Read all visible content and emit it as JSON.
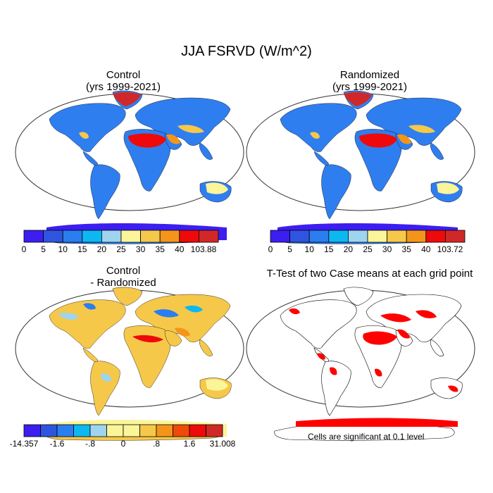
{
  "figure_title": "JJA FSRVD (W/m^2)",
  "panels": [
    {
      "title_line1": "Control",
      "title_line2": "(yrs 1999-2021)",
      "colorbar_labels": [
        "0",
        "5",
        "10",
        "15",
        "20",
        "25",
        "30",
        "35",
        "40",
        "103.88"
      ],
      "colors": [
        "#3c1ef0",
        "#2f55e0",
        "#2a7ef0",
        "#0db8f0",
        "#9ed4ee",
        "#fbf59a",
        "#f6c84a",
        "#f4951a",
        "#ee0a0a",
        "#d02828"
      ]
    },
    {
      "title_line1": "Randomized",
      "title_line2": "(yrs 1999-2021)",
      "colorbar_labels": [
        "0",
        "5",
        "10",
        "15",
        "20",
        "25",
        "30",
        "35",
        "40",
        "103.72"
      ],
      "colors": [
        "#3c1ef0",
        "#2f55e0",
        "#2a7ef0",
        "#0db8f0",
        "#9ed4ee",
        "#fbf59a",
        "#f6c84a",
        "#f4951a",
        "#ee0a0a",
        "#d02828"
      ]
    },
    {
      "title_line1": "Control",
      "title_line2": "- Randomized",
      "colorbar_labels": [
        "-14.357",
        "-1.6",
        "-.8",
        "0",
        ".8",
        "1.6",
        "31.008"
      ],
      "colors": [
        "#3c1ef0",
        "#2f55e0",
        "#2a7ef0",
        "#0db8f0",
        "#9ed4ee",
        "#fbf59a",
        "#fbf59a",
        "#f6c84a",
        "#f4951a",
        "#ee4a0a",
        "#ee0a0a",
        "#d02828"
      ]
    },
    {
      "title_line1": "T-Test of two Case means at each grid point",
      "title_line2": "",
      "note": "Cells are significant at 0.1 level",
      "colors": [
        "#ff0000"
      ]
    }
  ]
}
